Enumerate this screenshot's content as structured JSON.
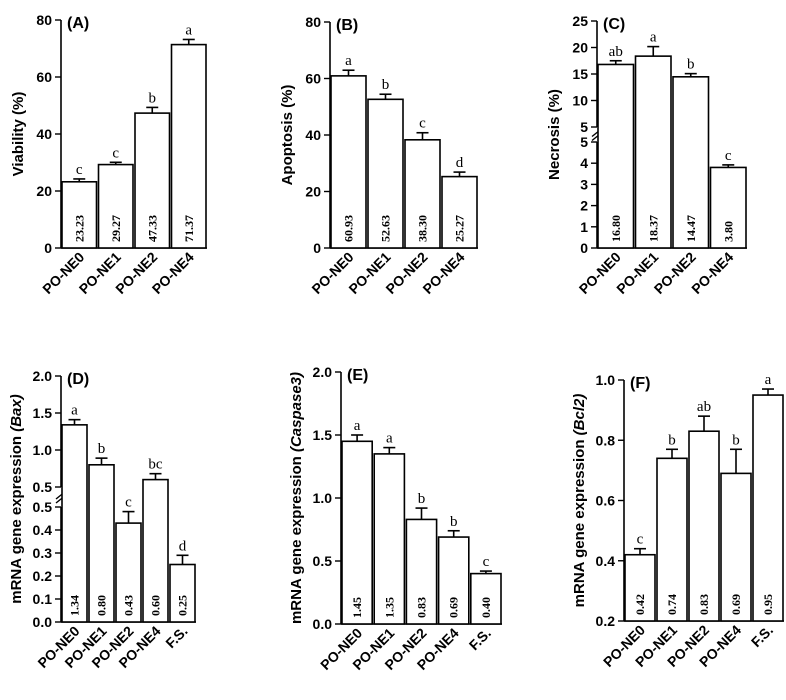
{
  "chart_data": [
    {
      "type": "bar",
      "panel_label": "(A)",
      "ylabel": "Viability (%)",
      "categories": [
        "PO-NE0",
        "PO-NE1",
        "PO-NE2",
        "PO-NE4"
      ],
      "values": [
        23.23,
        29.27,
        47.33,
        71.37
      ],
      "errors": [
        1.0,
        0.8,
        2.0,
        1.8
      ],
      "value_labels": [
        "23.23",
        "29.27",
        "47.33",
        "71.37"
      ],
      "significance": [
        "c",
        "c",
        "b",
        "a"
      ],
      "ylim": [
        0,
        80
      ],
      "yticks": [
        "0",
        "20",
        "40",
        "60",
        "80"
      ],
      "ytick_values": [
        0,
        20,
        40,
        60,
        80
      ]
    },
    {
      "type": "bar",
      "panel_label": "(B)",
      "ylabel": "Apoptosis (%)",
      "categories": [
        "PO-NE0",
        "PO-NE1",
        "PO-NE2",
        "PO-NE4"
      ],
      "values": [
        60.93,
        52.63,
        38.3,
        25.27
      ],
      "errors": [
        2.0,
        1.8,
        2.5,
        1.6
      ],
      "value_labels": [
        "60.93",
        "52.63",
        "38.30",
        "25.27"
      ],
      "significance": [
        "a",
        "b",
        "c",
        "d"
      ],
      "ylim": [
        0,
        80
      ],
      "yticks": [
        "0",
        "20",
        "40",
        "60",
        "80"
      ],
      "ytick_values": [
        0,
        20,
        40,
        60,
        80
      ]
    },
    {
      "type": "bar",
      "panel_label": "(C)",
      "ylabel": "Necrosis (%)",
      "categories": [
        "PO-NE0",
        "PO-NE1",
        "PO-NE2",
        "PO-NE4"
      ],
      "values": [
        16.8,
        18.37,
        14.47,
        3.8
      ],
      "errors": [
        0.7,
        1.8,
        0.6,
        0.12
      ],
      "value_labels": [
        "16.80",
        "18.37",
        "14.47",
        "3.80"
      ],
      "significance": [
        "ab",
        "a",
        "b",
        "c"
      ],
      "broken_axis": true,
      "ylim_lower": [
        0,
        5
      ],
      "ylim_upper": [
        5,
        25
      ],
      "yticks": [
        "0",
        "1",
        "2",
        "3",
        "4",
        "5",
        "5",
        "10",
        "15",
        "20",
        "25"
      ],
      "ytick_values_lower": [
        0,
        1,
        2,
        3,
        4,
        5
      ],
      "ytick_values_upper": [
        5,
        10,
        15,
        20,
        25
      ]
    },
    {
      "type": "bar",
      "panel_label": "(D)",
      "ylabel": "mRNA gene expression",
      "ylabel_gene": "(Bax)",
      "categories": [
        "PO-NE0",
        "PO-NE1",
        "PO-NE2",
        "PO-NE4",
        "F.S."
      ],
      "values": [
        1.34,
        0.8,
        0.43,
        0.6,
        0.25
      ],
      "errors": [
        0.07,
        0.09,
        0.05,
        0.08,
        0.04
      ],
      "value_labels": [
        "1.34",
        "0.80",
        "0.43",
        "0.60",
        "0.25"
      ],
      "significance": [
        "a",
        "b",
        "c",
        "bc",
        "d"
      ],
      "broken_axis": true,
      "ylim_lower": [
        0,
        0.5
      ],
      "ylim_upper": [
        0.5,
        2.0
      ],
      "yticks": [
        "0.0",
        "0.1",
        "0.2",
        "0.3",
        "0.4",
        "0.5",
        "0.5",
        "1.0",
        "1.5",
        "2.0"
      ],
      "ytick_values_lower": [
        0,
        0.1,
        0.2,
        0.3,
        0.4,
        0.5
      ],
      "ytick_values_upper": [
        0.5,
        1.0,
        1.5,
        2.0
      ]
    },
    {
      "type": "bar",
      "panel_label": "(E)",
      "ylabel": "mRNA gene expression",
      "ylabel_gene": "(Caspase3)",
      "categories": [
        "PO-NE0",
        "PO-NE1",
        "PO-NE2",
        "PO-NE4",
        "F.S."
      ],
      "values": [
        1.45,
        1.35,
        0.83,
        0.69,
        0.4
      ],
      "errors": [
        0.05,
        0.05,
        0.09,
        0.05,
        0.02
      ],
      "value_labels": [
        "1.45",
        "1.35",
        "0.83",
        "0.69",
        "0.40"
      ],
      "significance": [
        "a",
        "a",
        "b",
        "b",
        "c"
      ],
      "ylim": [
        0,
        2.0
      ],
      "yticks": [
        "0.0",
        "0.5",
        "1.0",
        "1.5",
        "2.0"
      ],
      "ytick_values": [
        0,
        0.5,
        1.0,
        1.5,
        2.0
      ]
    },
    {
      "type": "bar",
      "panel_label": "(F)",
      "ylabel": "mRNA gene expression",
      "ylabel_gene": "(Bcl2)",
      "categories": [
        "PO-NE0",
        "PO-NE1",
        "PO-NE2",
        "PO-NE4",
        "F.S."
      ],
      "values": [
        0.42,
        0.74,
        0.83,
        0.69,
        0.95
      ],
      "errors": [
        0.02,
        0.03,
        0.05,
        0.08,
        0.02
      ],
      "value_labels": [
        "0.42",
        "0.74",
        "0.83",
        "0.69",
        "0.95"
      ],
      "significance": [
        "c",
        "b",
        "ab",
        "b",
        "a"
      ],
      "ylim": [
        0.2,
        1.0
      ],
      "yticks": [
        "0.2",
        "0.4",
        "0.6",
        "0.8",
        "1.0"
      ],
      "ytick_values": [
        0.2,
        0.4,
        0.6,
        0.8,
        1.0
      ]
    }
  ]
}
